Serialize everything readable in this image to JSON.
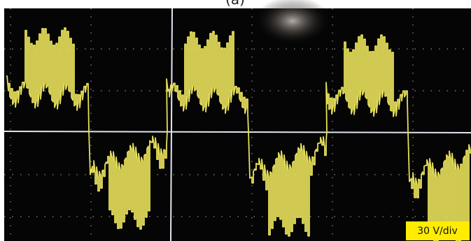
{
  "caption": "(a)",
  "scale_label": "30 V/div"
}
